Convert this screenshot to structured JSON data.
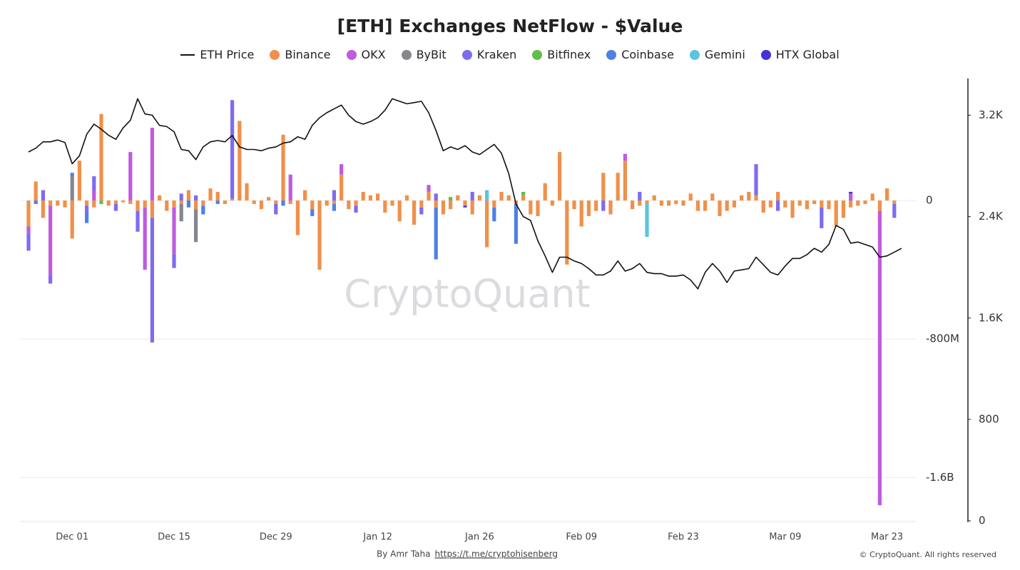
{
  "chart_data": {
    "type": "bar",
    "title": "[ETH] Exchanges NetFlow - $Value",
    "watermark": "CryptoQuant",
    "credit": "By Amr Taha",
    "link": "https://t.me/cryptohisenberg",
    "copyright": "© CryptoQuant. All rights reserved",
    "categories": [
      null,
      null,
      null,
      null,
      null,
      null,
      "Dec 01",
      null,
      null,
      null,
      null,
      null,
      null,
      null,
      null,
      null,
      null,
      null,
      null,
      null,
      "Dec 15",
      null,
      null,
      null,
      null,
      null,
      null,
      null,
      null,
      null,
      null,
      null,
      null,
      null,
      "Dec 29",
      null,
      null,
      null,
      null,
      null,
      null,
      null,
      null,
      null,
      null,
      null,
      null,
      null,
      "Jan 12",
      null,
      null,
      null,
      null,
      null,
      null,
      null,
      null,
      null,
      null,
      null,
      null,
      null,
      "Jan 26",
      null,
      null,
      null,
      null,
      null,
      null,
      null,
      null,
      null,
      null,
      null,
      null,
      null,
      "Feb 09",
      null,
      null,
      null,
      null,
      null,
      null,
      null,
      null,
      null,
      null,
      null,
      null,
      null,
      "Feb 23",
      null,
      null,
      null,
      null,
      null,
      null,
      null,
      null,
      null,
      null,
      null,
      null,
      null,
      "Mar 09",
      null,
      null,
      null,
      null,
      null,
      null,
      null,
      null,
      null,
      null,
      null,
      null,
      null,
      "Mar 23",
      null,
      null
    ],
    "ylim": [
      -1850000000.0,
      705000000.0
    ],
    "yticks": [
      {
        "value": -1600000000.0,
        "label": "-1.6B"
      },
      {
        "value": -800000000.0,
        "label": "-800M"
      },
      0
    ],
    "y2lim": [
      0,
      3490
    ],
    "y2ticks": [
      0,
      800,
      {
        "value": 1600,
        "label": "1.6K"
      },
      {
        "value": 2400,
        "label": "2.4K"
      },
      {
        "value": 3200,
        "label": "3.2K"
      }
    ],
    "grid": true,
    "series": [
      {
        "name": "ETH Price",
        "type": "line",
        "axis": "y2",
        "color": "#111111",
        "values": [
          2910,
          2940,
          2990,
          2990,
          3005,
          2985,
          2817,
          2880,
          3050,
          3130,
          3090,
          3042,
          3010,
          3100,
          3160,
          3330,
          3210,
          3200,
          3120,
          3110,
          3070,
          2930,
          2920,
          2850,
          2950,
          2990,
          3000,
          2990,
          3040,
          2950,
          2930,
          2930,
          2920,
          2940,
          2950,
          2980,
          2990,
          3030,
          3010,
          3120,
          3180,
          3220,
          3250,
          3280,
          3200,
          3150,
          3130,
          3150,
          3180,
          3240,
          3330,
          3310,
          3290,
          3300,
          3310,
          3220,
          3080,
          2920,
          2950,
          2930,
          2960,
          2910,
          2890,
          2930,
          2970,
          2900,
          2740,
          2500,
          2400,
          2370,
          2210,
          2090,
          1960,
          2080,
          2080,
          2050,
          2030,
          1990,
          1940,
          1940,
          1970,
          2050,
          1970,
          1990,
          2030,
          1960,
          1950,
          1950,
          1930,
          1930,
          1940,
          1900,
          1830,
          1960,
          2030,
          1970,
          1880,
          1970,
          1980,
          1990,
          2080,
          2020,
          1960,
          1940,
          2010,
          2070,
          2070,
          2100,
          2150,
          2120,
          2180,
          2330,
          2300,
          2190,
          2200,
          2180,
          2160,
          2080,
          2090,
          2120,
          2150
        ]
      },
      {
        "name": "Binance",
        "color": "#f0904a",
        "values": [
          -150000000.0,
          110000000.0,
          -100000000.0,
          -30000000.0,
          -30000000.0,
          -40000000.0,
          -220000000.0,
          230000000.0,
          -30000000.0,
          -40000000.0,
          500000000.0,
          -30000000.0,
          -20000000.0,
          -10000000.0,
          -20000000.0,
          -60000000.0,
          -40000000.0,
          -100000000.0,
          30000000.0,
          -60000000.0,
          -40000000.0,
          -20000000.0,
          60000000.0,
          -50000000.0,
          -30000000.0,
          70000000.0,
          50000000.0,
          -20000000.0,
          10000000.0,
          460000000.0,
          100000000.0,
          -20000000.0,
          -50000000.0,
          20000000.0,
          -20000000.0,
          380000000.0,
          -20000000.0,
          -200000000.0,
          60000000.0,
          -50000000.0,
          -400000000.0,
          -30000000.0,
          -20000000.0,
          150000000.0,
          -50000000.0,
          -30000000.0,
          50000000.0,
          30000000.0,
          40000000.0,
          -70000000.0,
          -30000000.0,
          -120000000.0,
          30000000.0,
          -140000000.0,
          -40000000.0,
          50000000.0,
          -40000000.0,
          -80000000.0,
          -50000000.0,
          30000000.0,
          -30000000.0,
          -80000000.0,
          30000000.0,
          -270000000.0,
          -40000000.0,
          50000000.0,
          30000000.0,
          -20000000.0,
          30000000.0,
          -80000000.0,
          -90000000.0,
          100000000.0,
          -30000000.0,
          280000000.0,
          -370000000.0,
          -50000000.0,
          -150000000.0,
          -90000000.0,
          -60000000.0,
          160000000.0,
          -80000000.0,
          160000000.0,
          230000000.0,
          -50000000.0,
          -30000000.0,
          -20000000.0,
          30000000.0,
          -30000000.0,
          -30000000.0,
          -20000000.0,
          -30000000.0,
          40000000.0,
          -60000000.0,
          -60000000.0,
          40000000.0,
          -90000000.0,
          -60000000.0,
          -40000000.0,
          30000000.0,
          50000000.0,
          30000000.0,
          -70000000.0,
          -40000000.0,
          50000000.0,
          -40000000.0,
          -100000000.0,
          -30000000.0,
          -50000000.0,
          -20000000.0,
          -40000000.0,
          -50000000.0,
          -150000000.0,
          -100000000.0,
          -40000000.0,
          -30000000.0,
          -20000000.0,
          40000000.0,
          -60000000.0,
          70000000.0,
          -20000000.0,
          0
        ]
      },
      {
        "name": "OKX",
        "color": "#c05ae0",
        "values": [
          -40000000.0,
          0,
          0,
          -400000000.0,
          0,
          0,
          0,
          0,
          0,
          60000000.0,
          0,
          0,
          0,
          0,
          280000000.0,
          0,
          -360000000.0,
          420000000.0,
          0,
          0,
          -270000000.0,
          0,
          0,
          0,
          0,
          0,
          0,
          0,
          0,
          0,
          0,
          0,
          0,
          0,
          0,
          0,
          150000000.0,
          0,
          0,
          0,
          0,
          0,
          0,
          60000000.0,
          0,
          0,
          0,
          0,
          0,
          0,
          0,
          0,
          0,
          0,
          0,
          40000000.0,
          0,
          0,
          0,
          0,
          0,
          0,
          0,
          0,
          0,
          0,
          0,
          0,
          0,
          0,
          0,
          0,
          0,
          0,
          0,
          0,
          0,
          0,
          0,
          0,
          0,
          0,
          40000000.0,
          0,
          0,
          0,
          0,
          0,
          0,
          0,
          0,
          0,
          0,
          0,
          0,
          0,
          0,
          0,
          0,
          0,
          0,
          0,
          0,
          0,
          0,
          0,
          0,
          0,
          0,
          0,
          0,
          0,
          0,
          40000000.0,
          0,
          0,
          0,
          -1700000000.0,
          0,
          0,
          0
        ]
      },
      {
        "name": "ByBit",
        "color": "#85878c",
        "values": [
          0,
          0,
          0,
          0,
          0,
          0,
          140000000.0,
          0,
          0,
          0,
          0,
          0,
          0,
          0,
          0,
          0,
          0,
          0,
          0,
          0,
          0,
          -100000000.0,
          0,
          -190000000.0,
          0,
          0,
          0,
          0,
          0,
          0,
          0,
          0,
          0,
          0,
          0,
          0,
          0,
          0,
          0,
          0,
          0,
          0,
          0,
          0,
          0,
          0,
          0,
          0,
          0,
          0,
          0,
          0,
          0,
          0,
          0,
          0,
          0,
          0,
          0,
          0,
          0,
          0,
          0,
          0,
          0,
          0,
          0,
          0,
          0,
          0,
          0,
          0,
          0,
          0,
          0,
          0,
          0,
          0,
          0,
          0,
          0,
          0,
          0,
          0,
          0,
          0,
          0,
          0,
          0,
          0,
          0,
          0,
          0,
          0,
          0,
          0,
          0,
          0,
          0,
          0,
          0,
          0,
          0,
          0,
          0,
          0,
          0,
          0,
          0,
          0,
          0,
          0,
          0,
          0,
          0,
          0,
          0,
          0,
          0,
          0,
          0
        ]
      },
      {
        "name": "Kraken",
        "color": "#7d6cf0",
        "values": [
          -100000000.0,
          0,
          60000000.0,
          -50000000.0,
          0,
          0,
          0,
          0,
          -40000000.0,
          80000000.0,
          0,
          0,
          -40000000.0,
          0,
          0,
          -120000000.0,
          0,
          -720000000.0,
          0,
          0,
          -80000000.0,
          40000000.0,
          0,
          30000000.0,
          0,
          0,
          0,
          0,
          570000000.0,
          0,
          0,
          0,
          0,
          0,
          -60000000.0,
          0,
          0,
          0,
          0,
          0,
          0,
          0,
          60000000.0,
          0,
          0,
          -40000000.0,
          0,
          0,
          0,
          0,
          0,
          0,
          0,
          0,
          -40000000.0,
          0,
          40000000.0,
          0,
          0,
          0,
          0,
          50000000.0,
          0,
          0,
          0,
          0,
          0,
          0,
          0,
          0,
          0,
          0,
          0,
          0,
          0,
          0,
          0,
          0,
          0,
          -60000000.0,
          0,
          0,
          0,
          0,
          50000000.0,
          0,
          0,
          0,
          0,
          0,
          0,
          0,
          0,
          0,
          0,
          0,
          0,
          0,
          0,
          0,
          180000000.0,
          0,
          0,
          -60000000.0,
          0,
          0,
          0,
          0,
          0,
          -120000000.0,
          0,
          0,
          0,
          0,
          0,
          0,
          0,
          0,
          0,
          -80000000.0,
          0
        ]
      },
      {
        "name": "Bitfinex",
        "color": "#5fbf4a",
        "values": [
          0,
          0,
          0,
          0,
          0,
          0,
          0,
          0,
          0,
          0,
          -20000000.0,
          0,
          0,
          0,
          0,
          0,
          0,
          0,
          0,
          0,
          0,
          0,
          0,
          0,
          0,
          0,
          0,
          0,
          0,
          0,
          0,
          0,
          0,
          0,
          0,
          0,
          0,
          0,
          0,
          0,
          0,
          0,
          0,
          0,
          0,
          0,
          0,
          0,
          0,
          0,
          0,
          0,
          0,
          0,
          0,
          0,
          0,
          0,
          20000000.0,
          0,
          0,
          0,
          0,
          0,
          0,
          0,
          0,
          0,
          20000000.0,
          0,
          0,
          0,
          0,
          0,
          0,
          0,
          0,
          0,
          0,
          0,
          0,
          0,
          0,
          0,
          0,
          0,
          0,
          0,
          0,
          0,
          0,
          0,
          0,
          0,
          0,
          0,
          0,
          0,
          0,
          0,
          0,
          0,
          0,
          0,
          0,
          0,
          0,
          0,
          0,
          0,
          0,
          0,
          0,
          0,
          0,
          0,
          0,
          0,
          0,
          0,
          0
        ]
      },
      {
        "name": "Coinbase",
        "color": "#4f80e8",
        "values": [
          0,
          -20000000.0,
          0,
          0,
          0,
          0,
          20000000.0,
          0,
          -60000000.0,
          0,
          0,
          0,
          0,
          0,
          0,
          0,
          0,
          0,
          0,
          0,
          0,
          0,
          -40000000.0,
          0,
          -50000000.0,
          0,
          -20000000.0,
          0,
          0,
          0,
          0,
          0,
          0,
          0,
          0,
          -30000000.0,
          0,
          0,
          0,
          -40000000.0,
          0,
          0,
          -40000000.0,
          0,
          0,
          0,
          0,
          0,
          0,
          0,
          0,
          0,
          0,
          0,
          0,
          0,
          -300000000.0,
          0,
          0,
          0,
          0,
          0,
          0,
          0,
          -80000000.0,
          0,
          0,
          -230000000.0,
          0,
          0,
          0,
          0,
          0,
          0,
          0,
          0,
          0,
          0,
          0,
          0,
          0,
          0,
          0,
          0,
          0,
          0,
          0,
          0,
          0,
          0,
          0,
          0,
          0,
          0,
          0,
          0,
          0,
          0,
          0,
          0,
          0,
          0,
          0,
          0,
          0,
          0,
          0,
          0,
          0,
          0,
          0,
          0,
          0,
          0,
          0,
          0,
          0,
          0,
          0,
          0,
          0
        ]
      },
      {
        "name": "Gemini",
        "color": "#5bc4e0",
        "values": [
          0,
          0,
          0,
          0,
          0,
          0,
          0,
          0,
          0,
          0,
          0,
          0,
          0,
          0,
          0,
          0,
          0,
          0,
          0,
          0,
          0,
          0,
          0,
          0,
          0,
          0,
          0,
          0,
          0,
          0,
          0,
          0,
          0,
          0,
          0,
          0,
          0,
          0,
          0,
          0,
          0,
          0,
          0,
          0,
          0,
          0,
          0,
          0,
          0,
          0,
          0,
          0,
          0,
          0,
          0,
          0,
          0,
          0,
          0,
          0,
          0,
          0,
          0,
          60000000.0,
          0,
          0,
          0,
          0,
          0,
          0,
          0,
          0,
          0,
          0,
          0,
          0,
          0,
          0,
          0,
          0,
          0,
          0,
          0,
          0,
          0,
          -190000000.0,
          0,
          0,
          0,
          0,
          0,
          0,
          0,
          0,
          0,
          0,
          0,
          0,
          0,
          0,
          0,
          0,
          0,
          0,
          0,
          0,
          0,
          0,
          0,
          0,
          0,
          0,
          0,
          0,
          0,
          0,
          0,
          0,
          0,
          0,
          0
        ]
      },
      {
        "name": "HTX Global",
        "color": "#4433d6",
        "values": [
          0,
          0,
          0,
          0,
          0,
          0,
          0,
          0,
          0,
          0,
          0,
          0,
          0,
          0,
          0,
          0,
          0,
          0,
          0,
          0,
          0,
          0,
          0,
          0,
          0,
          0,
          0,
          0,
          0,
          0,
          0,
          0,
          0,
          0,
          0,
          0,
          0,
          0,
          0,
          0,
          0,
          0,
          0,
          0,
          0,
          0,
          0,
          0,
          0,
          0,
          0,
          0,
          0,
          0,
          0,
          0,
          0,
          0,
          0,
          0,
          -10000000.0,
          0,
          0,
          0,
          0,
          0,
          0,
          0,
          0,
          0,
          0,
          0,
          0,
          0,
          0,
          0,
          0,
          0,
          0,
          0,
          0,
          0,
          0,
          0,
          0,
          0,
          0,
          0,
          0,
          0,
          0,
          0,
          0,
          0,
          0,
          0,
          0,
          0,
          0,
          0,
          0,
          0,
          0,
          0,
          0,
          0,
          0,
          0,
          0,
          0,
          0,
          0,
          0,
          10000000.0,
          0,
          0,
          0,
          0,
          0,
          0,
          0
        ]
      }
    ]
  }
}
